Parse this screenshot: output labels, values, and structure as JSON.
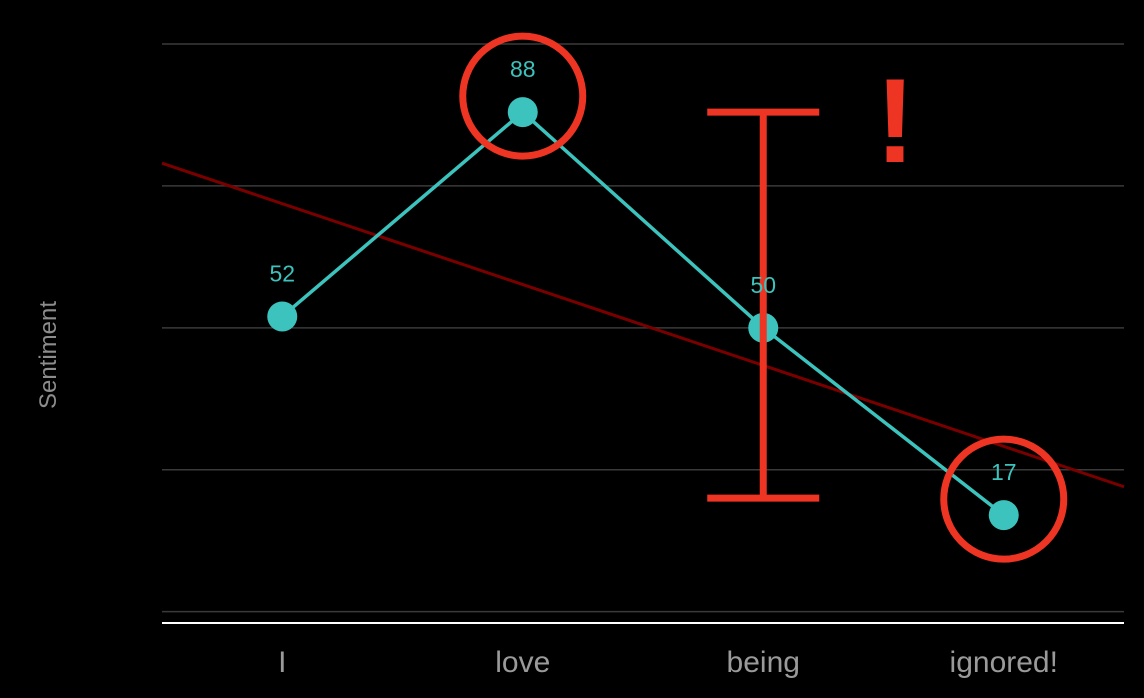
{
  "chart_data": {
    "type": "line",
    "categories": [
      "I",
      "love",
      "being",
      "ignored!"
    ],
    "series": [
      {
        "values": [
          52,
          88,
          50,
          17
        ],
        "color": "#3cc3bd"
      }
    ],
    "data_labels": [
      "52",
      "88",
      "50",
      "17"
    ],
    "ylabel": "Sentiment",
    "xlabel": "",
    "title": "",
    "ylim": [
      -2,
      100
    ],
    "gridlines_y": [
      0,
      25,
      50,
      75,
      100
    ],
    "grid": true,
    "legend": "none",
    "trendline": {
      "from": {
        "x": 0.5,
        "y": 79
      },
      "to": {
        "x": 4.5,
        "y": 22
      },
      "color": "#7a0000"
    },
    "annotations": {
      "circled_categories": [
        "love",
        "ignored!"
      ],
      "range_bar": {
        "from": 20,
        "to": 88
      },
      "exclamation": "!",
      "color": "#ee3524"
    }
  },
  "colors": {
    "background": "#000000",
    "gridline": "#3a3a3a",
    "axis": "#ffffff",
    "series": "#3cc3bd",
    "trend": "#7a0000",
    "annotation": "#ee3524"
  }
}
